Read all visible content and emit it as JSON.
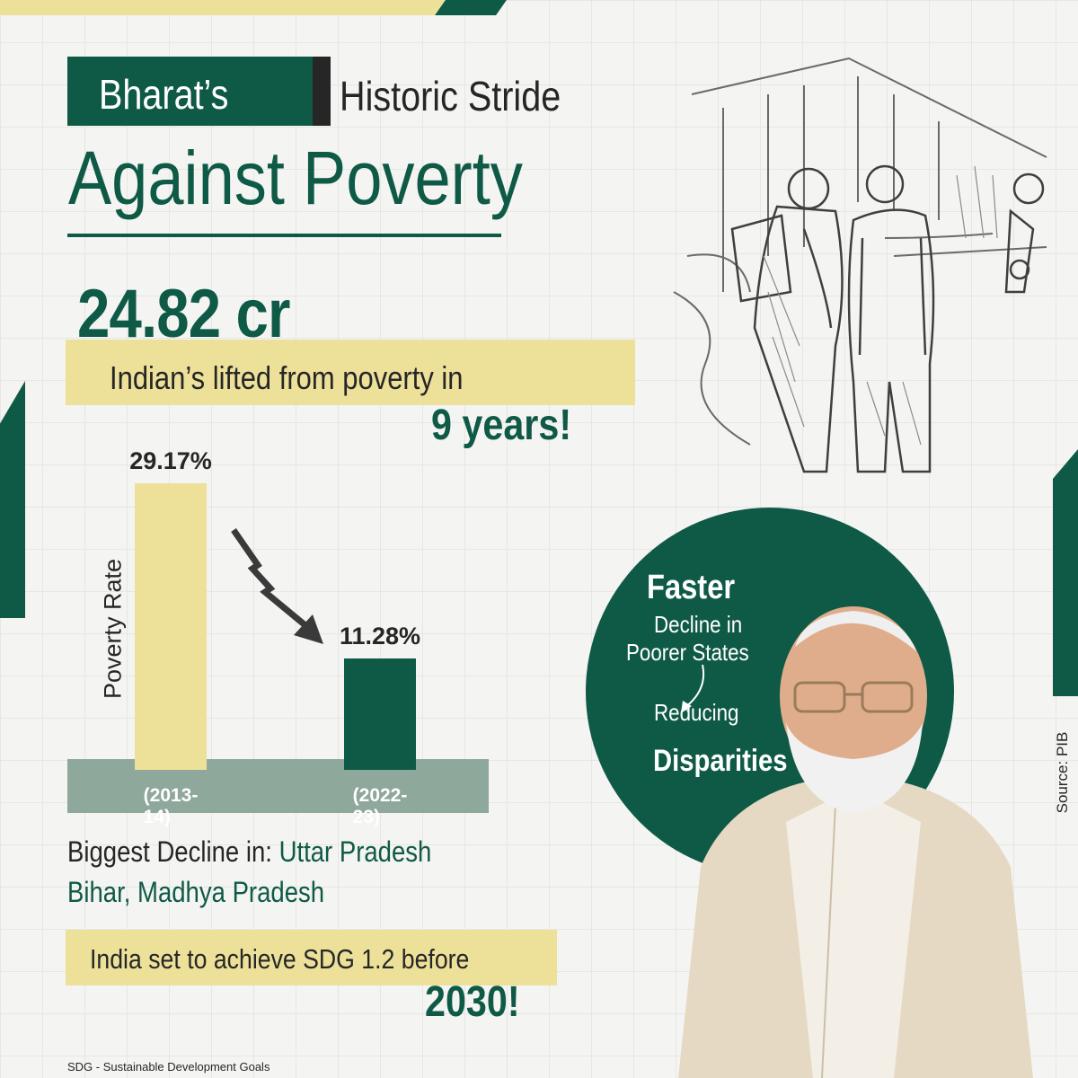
{
  "header": {
    "badge_word": "Bharat’s",
    "subtitle": "Historic Stride",
    "title": "Against Poverty"
  },
  "stat": {
    "number": "24.82 cr",
    "caption": "Indian’s lifted from poverty in",
    "period": "9 years!"
  },
  "chart_data": {
    "type": "bar",
    "categories": [
      "(2013-14)",
      "(2022-23)"
    ],
    "values": [
      29.17,
      11.28
    ],
    "value_labels": [
      "29.17%",
      "11.28%"
    ],
    "ylabel": "Poverty Rate",
    "colors": [
      "#ede19a",
      "#0f5a46"
    ]
  },
  "decline": {
    "prefix": "Biggest Decline in:",
    "state_1": "Uttar Pradesh",
    "states_2": "Bihar, Madhya Pradesh"
  },
  "goal": {
    "line": "India set to achieve SDG 1.2 before",
    "year": "2030!"
  },
  "circle": {
    "faster": "Faster",
    "line_1": "Decline in",
    "line_2": "Poorer States",
    "line_3": "Reducing",
    "line_4": "Disparities"
  },
  "footnote": "SDG - Sustainable Development Goals",
  "source": "Source: PIB",
  "colors": {
    "primary_green": "#0f5a46",
    "highlight_yellow": "#ede19a",
    "chart_base": "#8fa89c",
    "background": "#f4f4f2"
  },
  "images": {
    "sketch": "street-sketch-illustration",
    "portrait": "man-portrait-photo"
  }
}
